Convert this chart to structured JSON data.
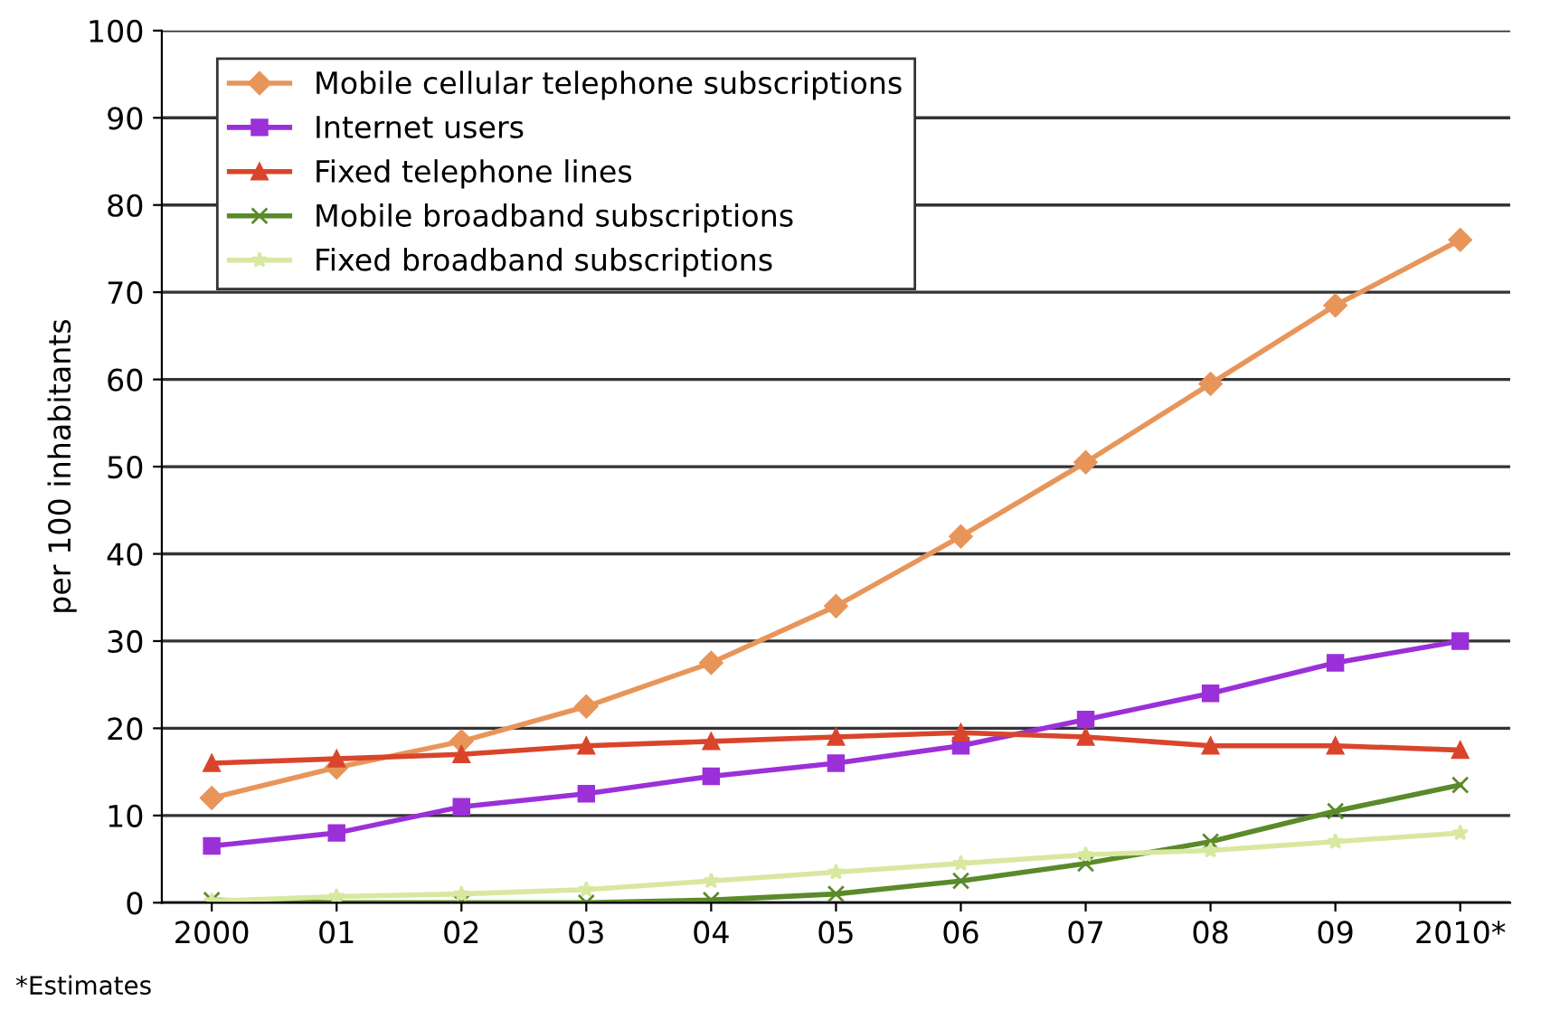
{
  "chart_data": {
    "type": "line",
    "ylabel": "per 100 inhabitants",
    "categories": [
      "2000",
      "01",
      "02",
      "03",
      "04",
      "05",
      "06",
      "07",
      "08",
      "09",
      "2010*"
    ],
    "series": [
      {
        "name": "Mobile cellular telephone subscriptions",
        "color": "#e8955a",
        "marker": "diamond",
        "values": [
          12,
          15.5,
          18.5,
          22.5,
          27.5,
          34,
          42,
          50.5,
          59.5,
          68.5,
          76
        ]
      },
      {
        "name": "Internet users",
        "color": "#9b30d9",
        "marker": "square",
        "values": [
          6.5,
          8,
          11,
          12.5,
          14.5,
          16,
          18,
          21,
          24,
          27.5,
          30
        ]
      },
      {
        "name": "Fixed telephone lines",
        "color": "#d9452b",
        "marker": "triangle",
        "values": [
          16,
          16.5,
          17,
          18,
          18.5,
          19,
          19.5,
          19,
          18,
          18,
          17.5
        ]
      },
      {
        "name": "Mobile broadband subscriptions",
        "color": "#5a8a2a",
        "marker": "cross",
        "values": [
          0.3,
          0,
          0,
          0,
          0.3,
          1,
          2.5,
          4.5,
          7,
          10.5,
          13.5
        ]
      },
      {
        "name": "Fixed broadband subscriptions",
        "color": "#d8e8a0",
        "marker": "star",
        "values": [
          0.2,
          0.7,
          1,
          1.5,
          2.5,
          3.5,
          4.5,
          5.5,
          6,
          7,
          8
        ]
      }
    ],
    "ylim": [
      0,
      100
    ],
    "yticks": [
      0,
      10,
      20,
      30,
      40,
      50,
      60,
      70,
      80,
      90,
      100
    ],
    "grid": "y",
    "legend": "top left",
    "line_style": "solid",
    "annotations": [
      "*Estimates"
    ]
  }
}
